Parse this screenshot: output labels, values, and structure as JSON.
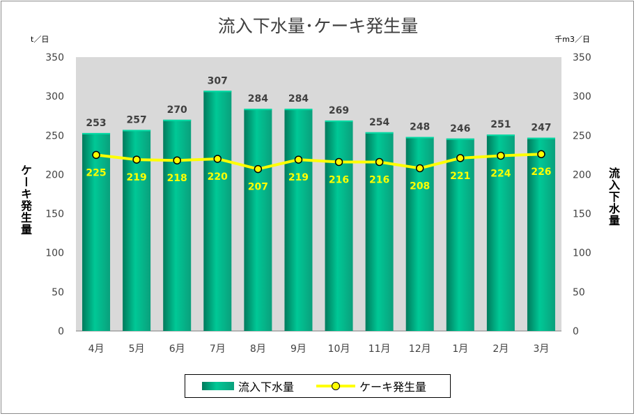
{
  "title": "流入下水量･ケーキ発生量",
  "unit_left": "t／日",
  "unit_right": "千m3／日",
  "axis_title_left": "ケーキ発生量",
  "axis_title_right": "流入下水量",
  "legend": {
    "bar_label": "流入下水量",
    "line_label": "ケーキ発生量"
  },
  "colors": {
    "bar": "#00b386",
    "line": "#ffff00",
    "plot_bg": "#d9d9d9"
  },
  "chart_data": {
    "type": "bar",
    "categories": [
      "4月",
      "5月",
      "6月",
      "7月",
      "8月",
      "9月",
      "10月",
      "11月",
      "12月",
      "1月",
      "2月",
      "3月"
    ],
    "series": [
      {
        "name": "流入下水量",
        "type": "bar",
        "axis": "right",
        "values": [
          253,
          257,
          270,
          307,
          284,
          284,
          269,
          254,
          248,
          246,
          251,
          247
        ]
      },
      {
        "name": "ケーキ発生量",
        "type": "line",
        "axis": "left",
        "values": [
          225,
          219,
          218,
          220,
          207,
          219,
          216,
          216,
          208,
          221,
          224,
          226
        ]
      }
    ],
    "y_left": {
      "label": "ケーキ発生量",
      "unit": "t／日",
      "ylim": [
        0,
        350
      ],
      "ticks": [
        "0",
        "50",
        "100",
        "150",
        "200",
        "250",
        "300",
        "350"
      ]
    },
    "y_right": {
      "label": "流入下水量",
      "unit": "千m3／日",
      "ylim": [
        0,
        350
      ],
      "ticks": [
        "0",
        "50",
        "100",
        "150",
        "200",
        "250",
        "300",
        "350"
      ]
    },
    "grid": false,
    "legend_position": "bottom"
  }
}
